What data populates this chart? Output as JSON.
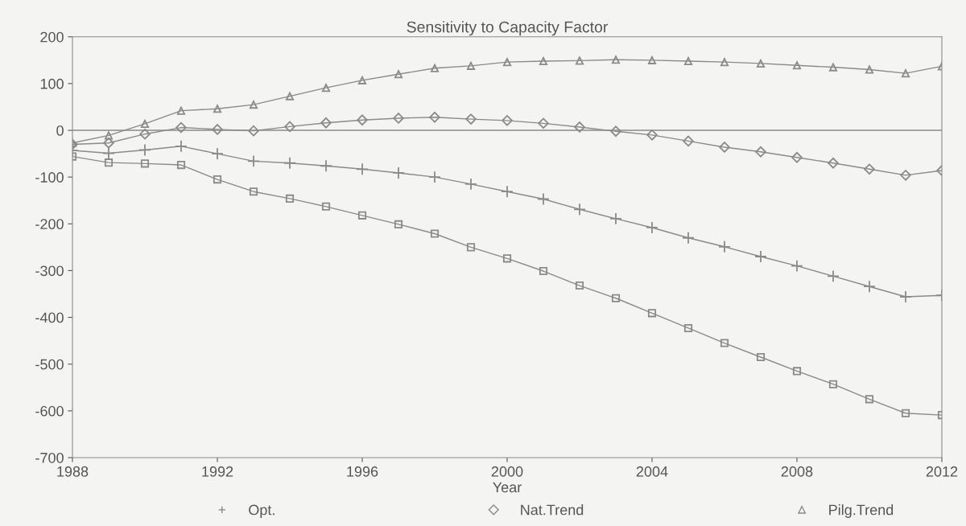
{
  "chart_data": {
    "type": "line",
    "title": "Sensitivity to Capacity Factor",
    "xlabel": "Year",
    "x": [
      1988,
      1989,
      1990,
      1991,
      1992,
      1993,
      1994,
      1995,
      1996,
      1997,
      1998,
      1999,
      2000,
      2001,
      2002,
      2003,
      2004,
      2005,
      2006,
      2007,
      2008,
      2009,
      2010,
      2011,
      2012
    ],
    "series": [
      {
        "color": "#8a8a8a",
        "marker": "square",
        "values": [
          -56,
          -69,
          -71,
          -74,
          -105,
          -131,
          -146,
          -163,
          -182,
          -201,
          -221,
          -250,
          -274,
          -301,
          -332,
          -359,
          -391,
          -423,
          -455,
          -485,
          -515,
          -543,
          -575,
          -605,
          -609
        ]
      },
      {
        "name": "Opt.",
        "color": "#8a8a8a",
        "marker": "cross",
        "values": [
          -43,
          -49,
          -42,
          -34,
          -50,
          -66,
          -70,
          -76,
          -83,
          -91,
          -100,
          -115,
          -131,
          -147,
          -169,
          -189,
          -208,
          -230,
          -249,
          -270,
          -290,
          -312,
          -334,
          -356,
          -353
        ]
      },
      {
        "name": "Nat.Trend",
        "color": "#8a8a8a",
        "marker": "diamond",
        "values": [
          -30,
          -27,
          -8,
          6,
          2,
          -1,
          8,
          16,
          22,
          26,
          28,
          24,
          21,
          15,
          7,
          -2,
          -10,
          -23,
          -36,
          -46,
          -58,
          -70,
          -83,
          -96,
          -86
        ]
      },
      {
        "name": "Pilg.Trend",
        "color": "#8a8a8a",
        "marker": "triangle",
        "values": [
          -27,
          -11,
          14,
          42,
          46,
          55,
          73,
          91,
          107,
          120,
          133,
          138,
          146,
          148,
          149,
          151,
          150,
          148,
          146,
          143,
          139,
          135,
          130,
          122,
          137
        ]
      }
    ],
    "xlim": [
      1988,
      2012
    ],
    "xticks": [
      1988,
      1992,
      1996,
      2000,
      2004,
      2008,
      2012
    ],
    "ylim": [
      -700,
      200
    ],
    "yticks": [
      -700,
      -600,
      -500,
      -400,
      -300,
      -200,
      -100,
      0,
      100,
      200
    ],
    "ref_lines": [
      {
        "axis": "y",
        "value": 0,
        "color": "#8a8a8a"
      }
    ],
    "grid": false,
    "legend": "bottom",
    "line_style": "solid"
  }
}
